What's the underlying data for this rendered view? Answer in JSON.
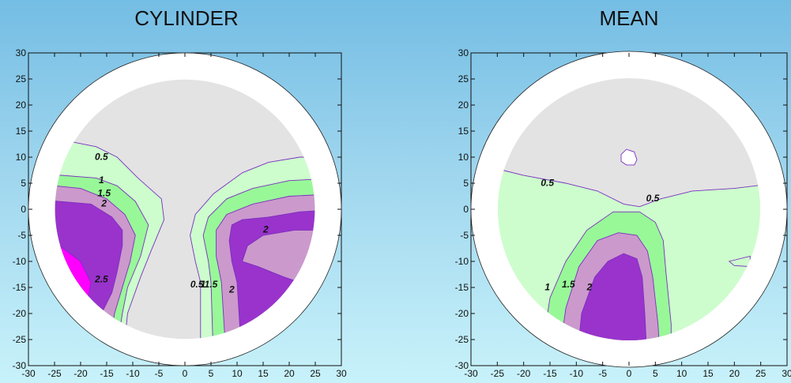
{
  "chart_data": [
    {
      "type": "contour",
      "title": "CYLINDER",
      "xlim": [
        -30,
        30
      ],
      "ylim": [
        -30,
        30
      ],
      "x_ticks": [
        -30,
        -25,
        -20,
        -15,
        -10,
        -5,
        0,
        5,
        10,
        15,
        20,
        25,
        30
      ],
      "y_ticks": [
        -30,
        -25,
        -20,
        -15,
        -10,
        -5,
        0,
        5,
        10,
        15,
        20,
        25,
        30
      ],
      "grid": false,
      "contour_levels": [
        0.5,
        1,
        1.5,
        2,
        2.5
      ],
      "contour_labels": [
        {
          "text": "0.5",
          "x": -16,
          "y": 9.5
        },
        {
          "text": "1",
          "x": -16,
          "y": 5
        },
        {
          "text": "1.5",
          "x": -15.5,
          "y": 2.5
        },
        {
          "text": "2",
          "x": -15.5,
          "y": 0.5
        },
        {
          "text": "2.5",
          "x": -16,
          "y": -14
        },
        {
          "text": "0.5",
          "x": 2.3,
          "y": -15
        },
        {
          "text": "1",
          "x": 3.5,
          "y": -15
        },
        {
          "text": "1.5",
          "x": 5,
          "y": -15
        },
        {
          "text": "2",
          "x": 9,
          "y": -16
        },
        {
          "text": "2",
          "x": 15.5,
          "y": -4.5
        }
      ]
    },
    {
      "type": "contour",
      "title": "MEAN",
      "xlim": [
        -30,
        30
      ],
      "ylim": [
        -30,
        30
      ],
      "x_ticks": [
        -30,
        -25,
        -20,
        -15,
        -10,
        -5,
        0,
        5,
        10,
        15,
        20,
        25,
        30
      ],
      "y_ticks": [
        -30,
        -25,
        -20,
        -15,
        -10,
        -5,
        0,
        5,
        10,
        15,
        20,
        25,
        30
      ],
      "grid": false,
      "contour_levels": [
        0.5,
        1,
        1.5,
        2
      ],
      "contour_labels": [
        {
          "text": "0.5",
          "x": -15.5,
          "y": 4.5
        },
        {
          "text": "0.5",
          "x": 4.5,
          "y": 1.5
        },
        {
          "text": "1",
          "x": -15.5,
          "y": -15.5
        },
        {
          "text": "1.5",
          "x": -11.5,
          "y": -15
        },
        {
          "text": "2",
          "x": -7.5,
          "y": -15.5
        }
      ]
    }
  ],
  "colors": {
    "background_top": "#74bde4",
    "background_bottom": "#c8f2fa",
    "level_0": "#e3e3e3",
    "level_0_5": "#cdfdcd",
    "level_1": "#98f898",
    "level_1_5": "#cc99cc",
    "level_2": "#9933cc",
    "level_2_5": "#ff00ff",
    "contour_line": "#7a2fbf",
    "ring": "#ffffff"
  }
}
